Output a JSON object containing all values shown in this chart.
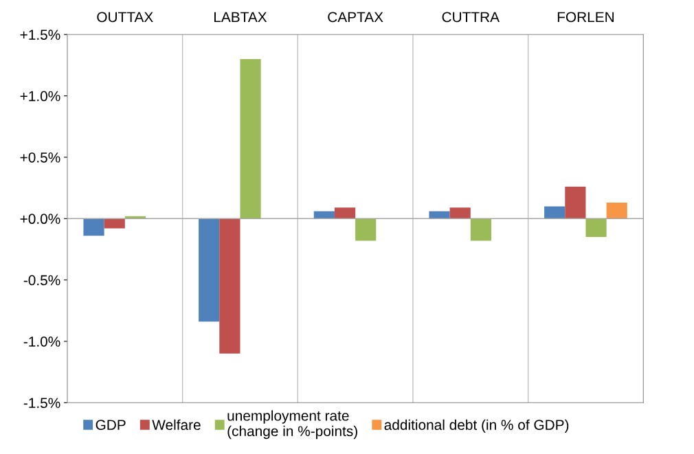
{
  "chart_data": {
    "type": "bar",
    "categories": [
      "OUTTAX",
      "LABTAX",
      "CAPTAX",
      "CUTTRA",
      "FORLEN"
    ],
    "series": [
      {
        "name": "GDP",
        "color": "#4f81bd",
        "values": [
          -0.14,
          -0.84,
          0.06,
          0.06,
          0.1
        ]
      },
      {
        "name": "Welfare",
        "color": "#c0504d",
        "values": [
          -0.08,
          -1.1,
          0.09,
          0.09,
          0.26
        ]
      },
      {
        "name": "unemployment rate\n(change in %-points)",
        "color": "#9bbb59",
        "values": [
          0.02,
          1.3,
          -0.18,
          -0.18,
          -0.15
        ]
      },
      {
        "name": "additional debt (in % of GDP)",
        "color": "#f79646",
        "values": [
          null,
          null,
          null,
          null,
          0.13
        ]
      }
    ],
    "ylim": [
      -1.5,
      1.5
    ],
    "yticks": [
      {
        "value": -1.5,
        "label": "-1.5%"
      },
      {
        "value": -1.0,
        "label": "-1.0%"
      },
      {
        "value": -0.5,
        "label": "-0.5%"
      },
      {
        "value": 0.0,
        "label": "+0.0%"
      },
      {
        "value": 0.5,
        "label": "+0.5%"
      },
      {
        "value": 1.0,
        "label": "+1.0%"
      },
      {
        "value": 1.5,
        "label": "+1.5%"
      }
    ],
    "grid": "x",
    "legend": "bottom"
  }
}
